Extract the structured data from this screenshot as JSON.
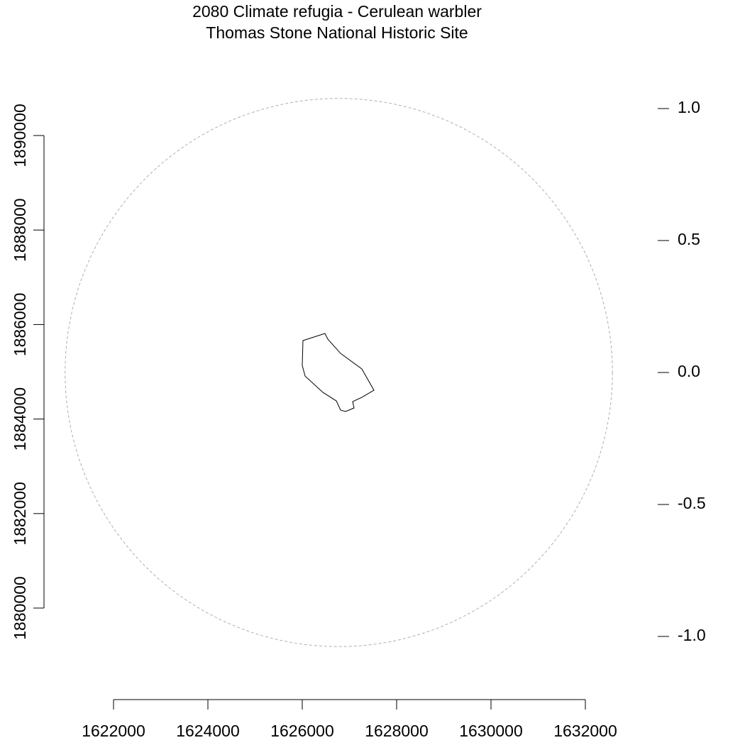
{
  "chart_data": {
    "type": "map",
    "title": "2080 Climate refugia - Cerulean warbler",
    "subtitle": "Thomas Stone National Historic Site",
    "xlim": [
      1622000,
      1632000
    ],
    "xticks": [
      1622000,
      1624000,
      1626000,
      1628000,
      1630000,
      1632000
    ],
    "ylim": [
      1880000,
      1890000
    ],
    "yticks": [
      1880000,
      1882000,
      1884000,
      1886000,
      1888000,
      1890000
    ],
    "y2lim": [
      -1,
      1
    ],
    "y2ticks": [
      {
        "value": -1,
        "label": "-1.0"
      },
      -0.5,
      {
        "value": 0,
        "label": "0.0"
      },
      0.5,
      {
        "value": 1,
        "label": "1.0"
      }
    ],
    "buffer": {
      "center": [
        1626774,
        1884985
      ],
      "radius": 5800,
      "color": "#b0b0b0"
    },
    "boundary": {
      "color": "#000000",
      "x": [
        1626015,
        1626481,
        1626541,
        1626812,
        1627263,
        1627519,
        1627263,
        1627068,
        1627098,
        1626917,
        1626812,
        1626722,
        1626436,
        1626060,
        1626000
      ],
      "y": [
        1885661,
        1885811,
        1885691,
        1885390,
        1885060,
        1884610,
        1884459,
        1884369,
        1884234,
        1884159,
        1884189,
        1884384,
        1884565,
        1884910,
        1885135
      ]
    }
  }
}
